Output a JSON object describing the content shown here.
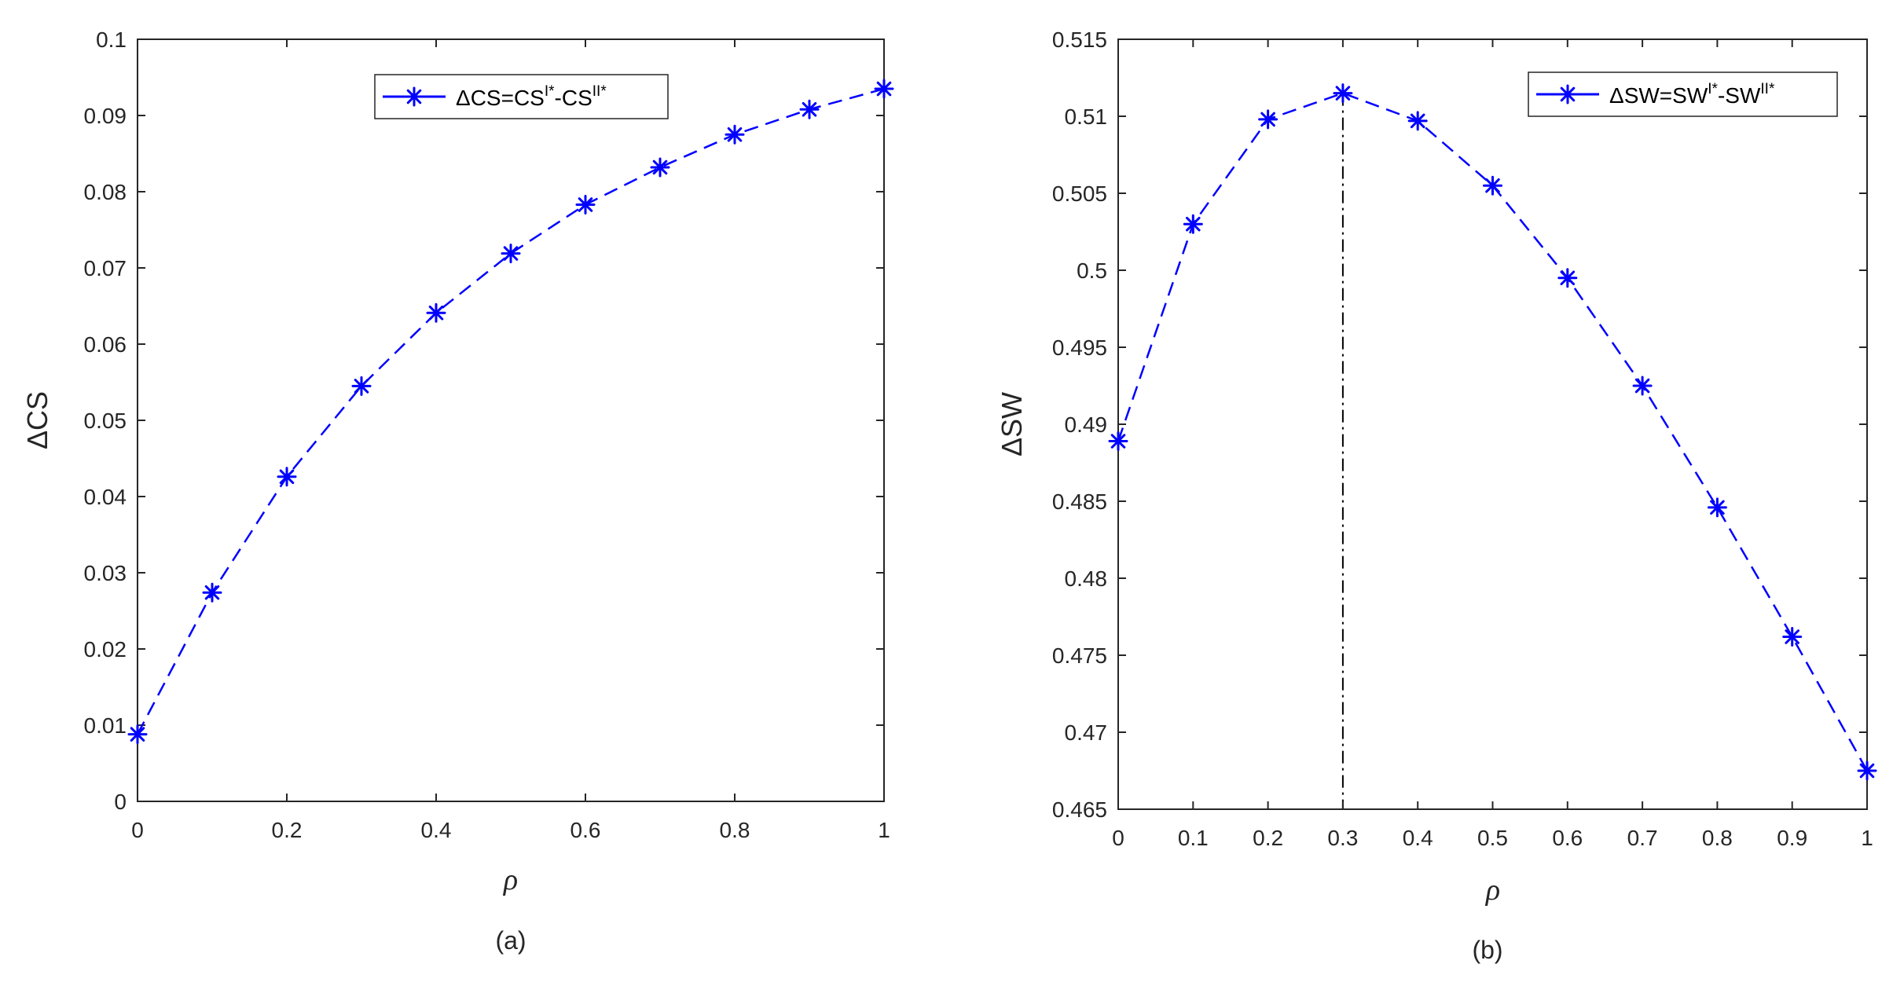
{
  "chart_data": [
    {
      "type": "line",
      "caption": "(a)",
      "xlabel": "ρ",
      "ylabel": "ΔCS",
      "x": [
        0,
        0.1,
        0.2,
        0.3,
        0.4,
        0.5,
        0.6,
        0.7,
        0.8,
        0.9,
        1.0
      ],
      "xlim": [
        0,
        1
      ],
      "ylim": [
        0,
        0.1
      ],
      "xticks": [
        0,
        0.2,
        0.4,
        0.6,
        0.8,
        1
      ],
      "xtick_labels": [
        "0",
        "0.2",
        "0.4",
        "0.6",
        "0.8",
        "1"
      ],
      "yticks": [
        0,
        0.01,
        0.02,
        0.03,
        0.04,
        0.05,
        0.06,
        0.07,
        0.08,
        0.09,
        0.1
      ],
      "ytick_labels": [
        "0",
        "0.01",
        "0.02",
        "0.03",
        "0.04",
        "0.05",
        "0.06",
        "0.07",
        "0.08",
        "0.09",
        "0.1"
      ],
      "grid": false,
      "legend_position": "top-right",
      "legend": {
        "prefix": "ΔCS=CS",
        "sup1": "I*",
        "mid": "-CS",
        "sup2": "II*"
      },
      "series": [
        {
          "values": [
            0.0088,
            0.0274,
            0.0426,
            0.0545,
            0.0641,
            0.0719,
            0.0783,
            0.0832,
            0.0875,
            0.0908,
            0.0935
          ],
          "color": "#0000ff",
          "line_style": "dashed",
          "marker": "asterisk"
        }
      ]
    },
    {
      "type": "line",
      "caption": "(b)",
      "xlabel": "ρ",
      "ylabel": "ΔSW",
      "x": [
        0,
        0.1,
        0.2,
        0.3,
        0.4,
        0.5,
        0.6,
        0.7,
        0.8,
        0.9,
        1.0
      ],
      "xlim": [
        0,
        1
      ],
      "ylim": [
        0.465,
        0.515
      ],
      "xticks": [
        0,
        0.1,
        0.2,
        0.3,
        0.4,
        0.5,
        0.6,
        0.7,
        0.8,
        0.9,
        1
      ],
      "xtick_labels": [
        "0",
        "0.1",
        "0.2",
        "0.3",
        "0.4",
        "0.5",
        "0.6",
        "0.7",
        "0.8",
        "0.9",
        "1"
      ],
      "yticks": [
        0.465,
        0.47,
        0.475,
        0.48,
        0.485,
        0.49,
        0.495,
        0.5,
        0.505,
        0.51,
        0.515
      ],
      "ytick_labels": [
        "0.465",
        "0.47",
        "0.475",
        "0.48",
        "0.485",
        "0.49",
        "0.495",
        "0.5",
        "0.505",
        "0.51",
        "0.515"
      ],
      "grid": false,
      "legend_position": "top-right",
      "legend": {
        "prefix": "ΔSW=SW",
        "sup1": "I*",
        "mid": "-SW",
        "sup2": "II*"
      },
      "vline_x": 0.3,
      "series": [
        {
          "values": [
            0.4889,
            0.503,
            0.5098,
            0.5115,
            0.5097,
            0.5055,
            0.4995,
            0.4925,
            0.4846,
            0.4762,
            0.4675
          ],
          "color": "#0000ff",
          "line_style": "dashed",
          "marker": "asterisk"
        }
      ]
    }
  ]
}
